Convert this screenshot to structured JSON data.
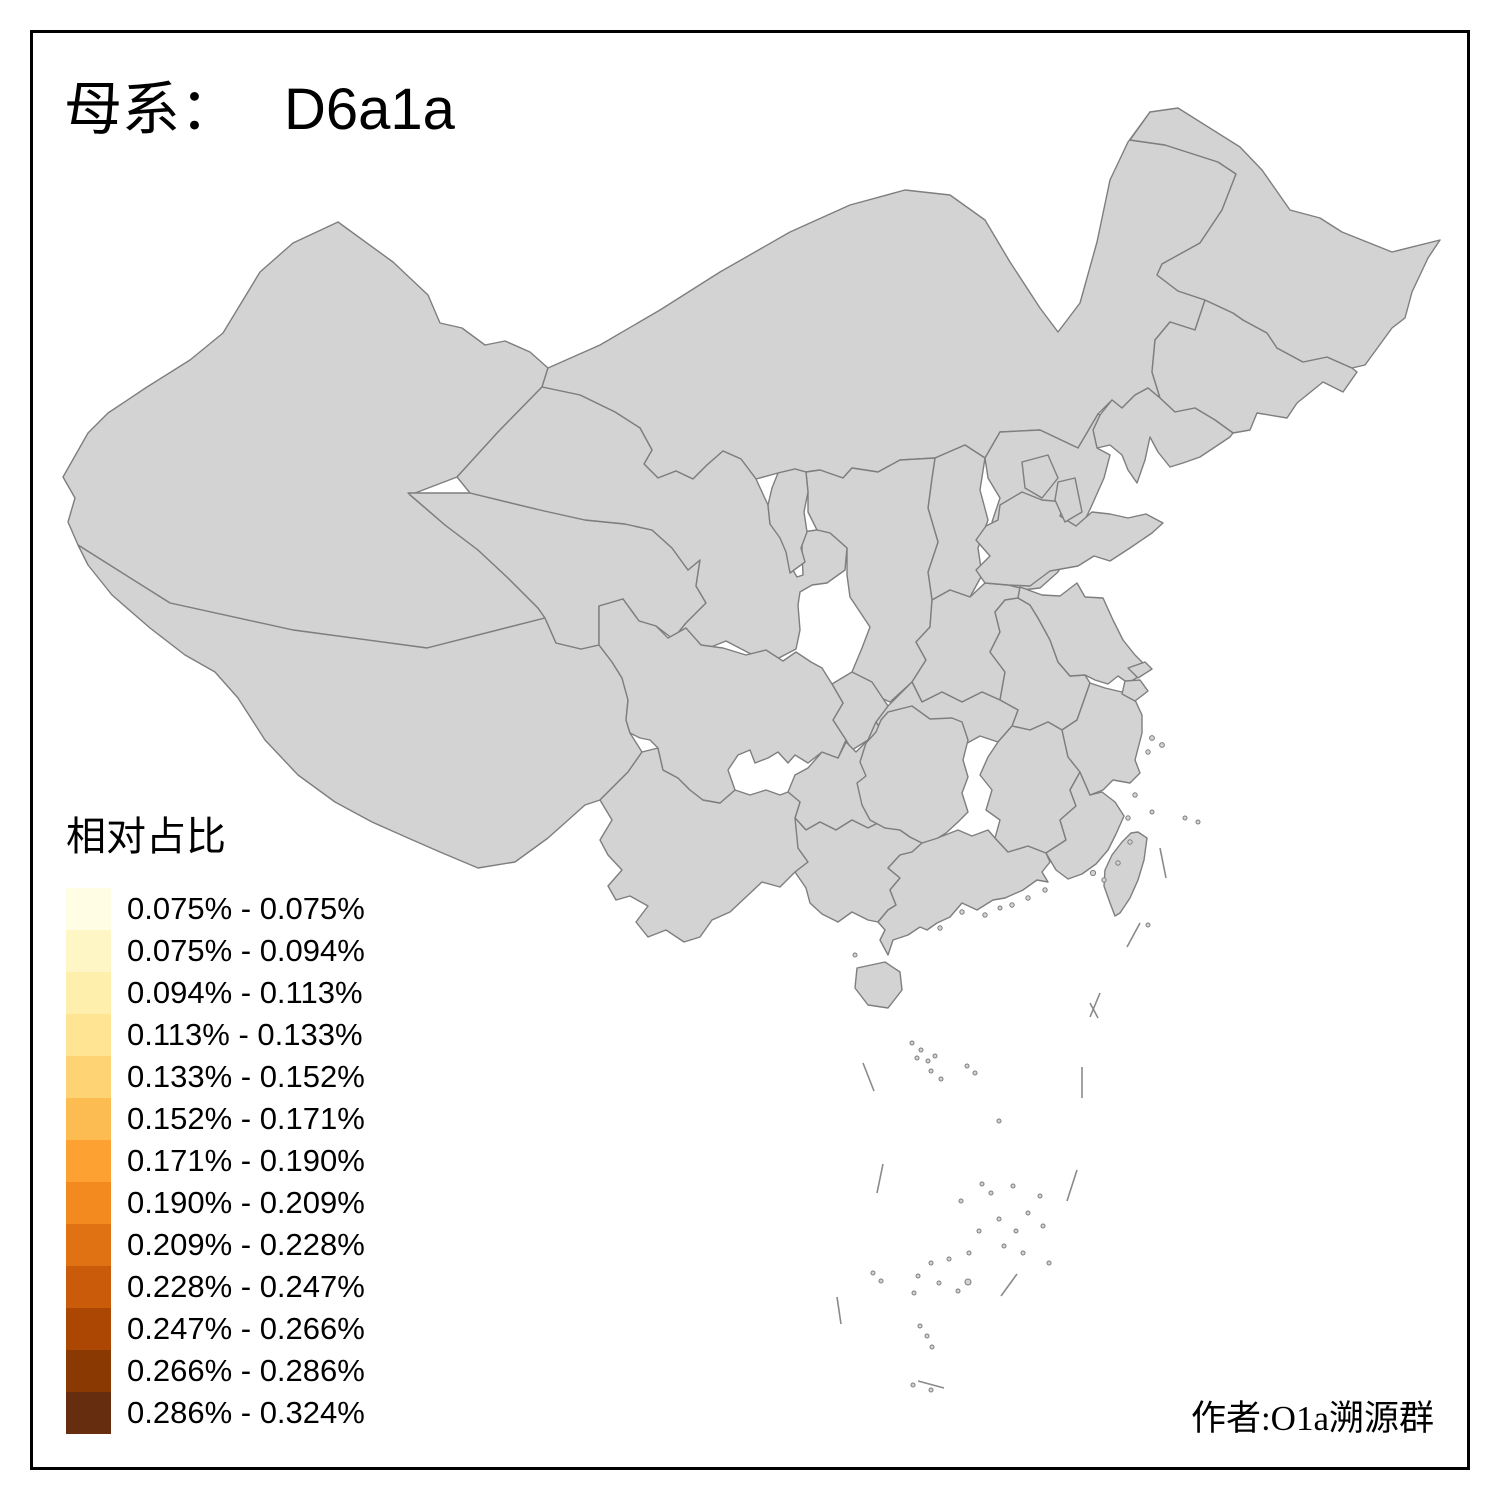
{
  "title": {
    "lineage_label": "母系：",
    "haplogroup": "D6a1a"
  },
  "legend": {
    "title": "相对占比",
    "items": [
      {
        "range": "0.075% - 0.075%",
        "color": "#FFFDE4"
      },
      {
        "range": "0.075% - 0.094%",
        "color": "#FFF6C6"
      },
      {
        "range": "0.094% - 0.113%",
        "color": "#FEEFAD"
      },
      {
        "range": "0.113% - 0.133%",
        "color": "#FEE493"
      },
      {
        "range": "0.133% - 0.152%",
        "color": "#FDD373"
      },
      {
        "range": "0.152% - 0.171%",
        "color": "#FDBC51"
      },
      {
        "range": "0.171% - 0.190%",
        "color": "#FDA133"
      },
      {
        "range": "0.190% - 0.209%",
        "color": "#F28A20"
      },
      {
        "range": "0.209% - 0.228%",
        "color": "#E07213"
      },
      {
        "range": "0.228% - 0.247%",
        "color": "#C95B0A"
      },
      {
        "range": "0.247% - 0.266%",
        "color": "#AC4703"
      },
      {
        "range": "0.266% - 0.286%",
        "color": "#8B3903"
      },
      {
        "range": "0.286% - 0.324%",
        "color": "#662D0E"
      }
    ]
  },
  "attribution": "作者:O1a溯源群",
  "map": {
    "default_fill": "#D3D3D3",
    "border_color": "#7E7E7E",
    "sea_color": "#FFFFFF",
    "frame_color": "#000000",
    "provinces": [
      {
        "id": "xinjiang",
        "fill": "#D3D3D3"
      },
      {
        "id": "tibet",
        "fill": "#D3D3D3"
      },
      {
        "id": "qinghai",
        "fill": "#D3D3D3"
      },
      {
        "id": "inner-mongolia",
        "fill": "#D3D3D3"
      },
      {
        "id": "jilin",
        "fill": "#D3D3D3"
      },
      {
        "id": "liaoning",
        "fill": "#D3D3D3"
      },
      {
        "id": "hebei",
        "fill": "#D3D3D3"
      },
      {
        "id": "shanxi",
        "fill": "#D3D3D3"
      },
      {
        "id": "shaanxi",
        "fill": "#D3D3D3"
      },
      {
        "id": "henan",
        "fill": "#D3D3D3"
      },
      {
        "id": "anhui",
        "fill": "#D3D3D3"
      },
      {
        "id": "hubei",
        "fill": "#D3D3D3"
      },
      {
        "id": "chongqing",
        "fill": "#D3D3D3"
      },
      {
        "id": "guizhou",
        "fill": "#D3D3D3"
      },
      {
        "id": "yunnan",
        "fill": "#D3D3D3"
      },
      {
        "id": "guangxi",
        "fill": "#D3D3D3"
      },
      {
        "id": "guangdong",
        "fill": "#D3D3D3"
      },
      {
        "id": "jiangxi",
        "fill": "#D3D3D3"
      },
      {
        "id": "fujian",
        "fill": "#D3D3D3"
      },
      {
        "id": "hainan",
        "fill": "#D3D3D3"
      },
      {
        "id": "taiwan",
        "fill": "#D3D3D3"
      },
      {
        "id": "heilongjiang",
        "fill": "#D2600F"
      },
      {
        "id": "gansu",
        "fill": "#5E2610"
      },
      {
        "id": "sichuan",
        "fill": "#FEFCE1"
      },
      {
        "id": "shandong",
        "fill": "#FBE8A6"
      },
      {
        "id": "jiangsu",
        "fill": "#66280A"
      },
      {
        "id": "zhejiang",
        "fill": "#FCF0BE"
      },
      {
        "id": "hunan",
        "fill": "#FDD685"
      },
      {
        "id": "shanghai",
        "fill": "#FA9E3C"
      },
      {
        "id": "ningxia",
        "fill": "#D3D3D3"
      },
      {
        "id": "beijing",
        "fill": "#D3D3D3"
      },
      {
        "id": "tianjin",
        "fill": "#D3D3D3"
      }
    ]
  }
}
